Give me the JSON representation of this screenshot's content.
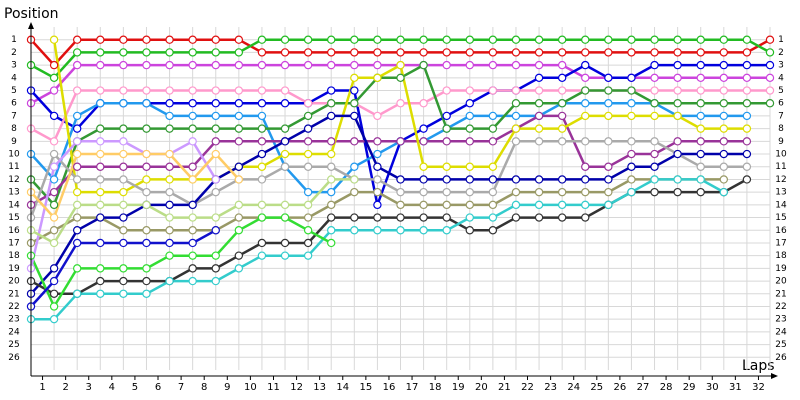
{
  "chart_data": {
    "type": "line",
    "title": "Position",
    "x_label": "Laps",
    "xlim": [
      0,
      32
    ],
    "ylim": [
      0,
      27
    ],
    "y_inverted": true,
    "grid": true,
    "xticks": [
      {
        "value": 0.5,
        "label": "1"
      },
      {
        "value": 1.5,
        "label": "2"
      },
      {
        "value": 2.5,
        "label": "3"
      },
      {
        "value": 3.5,
        "label": "4"
      },
      {
        "value": 4.5,
        "label": "5"
      },
      {
        "value": 5.5,
        "label": "6"
      },
      {
        "value": 6.5,
        "label": "7"
      },
      {
        "value": 7.5,
        "label": "8"
      },
      {
        "value": 8.5,
        "label": "9"
      },
      {
        "value": 9.5,
        "label": "10"
      },
      {
        "value": 10.5,
        "label": "11"
      },
      {
        "value": 11.5,
        "label": "12"
      },
      {
        "value": 12.5,
        "label": "13"
      },
      {
        "value": 13.5,
        "label": "14"
      },
      {
        "value": 14.5,
        "label": "15"
      },
      {
        "value": 15.5,
        "label": "16"
      },
      {
        "value": 16.5,
        "label": "17"
      },
      {
        "value": 17.5,
        "label": "18"
      },
      {
        "value": 18.5,
        "label": "19"
      },
      {
        "value": 19.5,
        "label": "20"
      },
      {
        "value": 20.5,
        "label": "21"
      },
      {
        "value": 21.5,
        "label": "22"
      },
      {
        "value": 22.5,
        "label": "23"
      },
      {
        "value": 23.5,
        "label": "24"
      },
      {
        "value": 24.5,
        "label": "25"
      },
      {
        "value": 25.5,
        "label": "26"
      },
      {
        "value": 26.5,
        "label": "27"
      },
      {
        "value": 27.5,
        "label": "28"
      },
      {
        "value": 28.5,
        "label": "29"
      },
      {
        "value": 29.5,
        "label": "30"
      },
      {
        "value": 30.5,
        "label": "31"
      },
      {
        "value": 31.5,
        "label": "32"
      }
    ],
    "yticks": [
      1,
      2,
      3,
      4,
      5,
      6,
      7,
      8,
      9,
      10,
      11,
      12,
      13,
      14,
      15,
      16,
      17,
      18,
      19,
      20,
      21,
      22,
      23,
      24,
      25,
      26
    ],
    "x": [
      0,
      1,
      2,
      3,
      4,
      5,
      6,
      7,
      8,
      9,
      10,
      11,
      12,
      13,
      14,
      15,
      16,
      17,
      18,
      19,
      20,
      21,
      22,
      23,
      24,
      25,
      26,
      27,
      28,
      29,
      30,
      31,
      32
    ],
    "series": [
      {
        "color": "#e01010",
        "values": [
          1,
          3,
          1,
          1,
          1,
          1,
          1,
          1,
          1,
          1,
          2,
          2,
          2,
          2,
          2,
          2,
          2,
          2,
          2,
          2,
          2,
          2,
          2,
          2,
          2,
          2,
          2,
          2,
          2,
          2,
          2,
          2,
          1
        ]
      },
      {
        "color": "#22bb22",
        "values": [
          3,
          4,
          2,
          2,
          2,
          2,
          2,
          2,
          2,
          2,
          1,
          1,
          1,
          1,
          1,
          1,
          1,
          1,
          1,
          1,
          1,
          1,
          1,
          1,
          1,
          1,
          1,
          1,
          1,
          1,
          1,
          1,
          2
        ]
      },
      {
        "color": "#cc44dd",
        "values": [
          6,
          5,
          3,
          3,
          3,
          3,
          3,
          3,
          3,
          3,
          3,
          3,
          3,
          3,
          3,
          3,
          3,
          3,
          3,
          3,
          3,
          3,
          3,
          3,
          4,
          4,
          4,
          4,
          4,
          4,
          4,
          4,
          4
        ]
      },
      {
        "color": "#0000dd",
        "values": [
          5,
          7,
          8,
          6,
          6,
          6,
          6,
          6,
          6,
          6,
          6,
          6,
          6,
          5,
          5,
          14,
          9,
          8,
          7,
          6,
          5,
          5,
          4,
          4,
          3,
          4,
          4,
          3,
          3,
          3,
          3,
          3,
          3
        ]
      },
      {
        "color": "#ff99cc",
        "values": [
          8,
          9,
          5,
          5,
          5,
          5,
          5,
          5,
          5,
          5,
          5,
          5,
          6,
          6,
          6,
          7,
          6,
          6,
          5,
          5,
          5,
          5,
          5,
          5,
          5,
          5,
          5,
          5,
          5,
          5,
          5,
          5,
          5
        ]
      },
      {
        "color": "#2299ee",
        "values": [
          10,
          12,
          7,
          6,
          6,
          6,
          7,
          7,
          7,
          7,
          7,
          11,
          13,
          13,
          11,
          10,
          9,
          9,
          8,
          7,
          7,
          7,
          7,
          6,
          6,
          6,
          6,
          6,
          7,
          7,
          7,
          7,
          null
        ]
      },
      {
        "color": "#339933",
        "values": [
          12,
          14,
          9,
          8,
          8,
          8,
          8,
          8,
          8,
          8,
          8,
          8,
          7,
          6,
          6,
          4,
          4,
          3,
          8,
          8,
          8,
          6,
          6,
          6,
          5,
          5,
          5,
          6,
          6,
          6,
          6,
          6,
          6
        ]
      },
      {
        "color": "#993399",
        "values": [
          14,
          13,
          11,
          11,
          11,
          11,
          11,
          11,
          9,
          9,
          9,
          9,
          9,
          9,
          9,
          9,
          9,
          9,
          9,
          9,
          9,
          8,
          7,
          7,
          11,
          11,
          10,
          10,
          9,
          9,
          9,
          9,
          null
        ]
      },
      {
        "color": "#dddd00",
        "values": [
          null,
          1,
          13,
          13,
          13,
          12,
          12,
          12,
          12,
          11,
          11,
          10,
          10,
          10,
          4,
          4,
          3,
          11,
          11,
          11,
          11,
          8,
          8,
          8,
          7,
          7,
          7,
          7,
          7,
          8,
          8,
          8,
          null
        ]
      },
      {
        "color": "#aaaaaa",
        "values": [
          15,
          10,
          12,
          12,
          12,
          13,
          13,
          14,
          13,
          12,
          12,
          11,
          11,
          11,
          12,
          12,
          13,
          13,
          13,
          13,
          13,
          9,
          9,
          9,
          9,
          9,
          9,
          9,
          10,
          11,
          11,
          11,
          null
        ]
      },
      {
        "color": "#999966",
        "values": [
          17,
          16,
          15,
          15,
          16,
          16,
          16,
          16,
          16,
          15,
          15,
          15,
          15,
          14,
          13,
          13,
          14,
          14,
          14,
          14,
          14,
          13,
          13,
          13,
          13,
          13,
          12,
          12,
          12,
          12,
          12,
          null,
          null
        ]
      },
      {
        "color": "#0000aa",
        "values": [
          21,
          19,
          16,
          15,
          15,
          14,
          14,
          14,
          12,
          11,
          10,
          9,
          8,
          7,
          7,
          11,
          12,
          12,
          12,
          12,
          12,
          12,
          12,
          12,
          12,
          12,
          11,
          11,
          10,
          10,
          10,
          10,
          null
        ]
      },
      {
        "color": "#333333",
        "values": [
          20,
          21,
          21,
          20,
          20,
          20,
          20,
          19,
          19,
          18,
          17,
          17,
          17,
          15,
          15,
          15,
          15,
          15,
          15,
          16,
          16,
          15,
          15,
          15,
          15,
          14,
          13,
          13,
          13,
          13,
          13,
          12,
          null
        ]
      },
      {
        "color": "#33cccc",
        "values": [
          23,
          23,
          21,
          21,
          21,
          21,
          20,
          20,
          20,
          19,
          18,
          18,
          18,
          16,
          16,
          16,
          16,
          16,
          16,
          15,
          15,
          14,
          14,
          14,
          14,
          14,
          13,
          12,
          12,
          12,
          13,
          null,
          null
        ]
      },
      {
        "color": "#33dd33",
        "values": [
          18,
          22,
          19,
          19,
          19,
          19,
          18,
          18,
          18,
          16,
          15,
          15,
          16,
          17,
          null,
          null,
          null,
          null,
          null,
          null,
          null,
          null,
          null,
          null,
          null,
          null,
          null,
          null,
          null,
          null,
          null,
          null,
          null
        ]
      },
      {
        "color": "#1111cc",
        "values": [
          22,
          20,
          17,
          17,
          17,
          17,
          17,
          17,
          16,
          null,
          null,
          null,
          null,
          null,
          null,
          null,
          null,
          null,
          null,
          null,
          null,
          null,
          null,
          null,
          null,
          null,
          null,
          null,
          null,
          null,
          null,
          null,
          null
        ]
      },
      {
        "color": "#cc99ff",
        "values": [
          19,
          11,
          9,
          9,
          9,
          10,
          10,
          9,
          12,
          null,
          null,
          null,
          null,
          null,
          null,
          null,
          null,
          null,
          null,
          null,
          null,
          null,
          null,
          null,
          null,
          null,
          null,
          null,
          null,
          null,
          null,
          null,
          null
        ]
      },
      {
        "color": "#ffcc66",
        "values": [
          13,
          15,
          10,
          10,
          10,
          10,
          10,
          12,
          10,
          12,
          null,
          null,
          null,
          null,
          null,
          null,
          null,
          null,
          null,
          null,
          null,
          null,
          null,
          null,
          null,
          null,
          null,
          null,
          null,
          null,
          null,
          null,
          null
        ]
      },
      {
        "color": "#bbdd88",
        "values": [
          16,
          17,
          14,
          14,
          14,
          14,
          15,
          15,
          15,
          14,
          14,
          14,
          14,
          12,
          12,
          null,
          null,
          null,
          null,
          null,
          null,
          null,
          null,
          null,
          null,
          null,
          null,
          null,
          null,
          null,
          null,
          null,
          null
        ]
      }
    ]
  }
}
